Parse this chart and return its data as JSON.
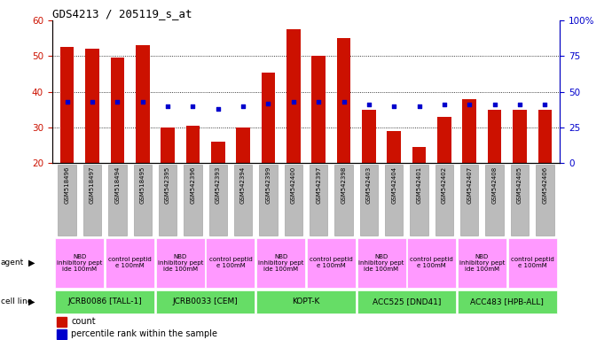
{
  "title": "GDS4213 / 205119_s_at",
  "samples": [
    "GSM518496",
    "GSM518497",
    "GSM518494",
    "GSM518495",
    "GSM542395",
    "GSM542396",
    "GSM542393",
    "GSM542394",
    "GSM542399",
    "GSM542400",
    "GSM542397",
    "GSM542398",
    "GSM542403",
    "GSM542404",
    "GSM542401",
    "GSM542402",
    "GSM542407",
    "GSM542408",
    "GSM542405",
    "GSM542406"
  ],
  "counts": [
    52.5,
    52.0,
    49.5,
    53.0,
    30.0,
    30.5,
    26.0,
    30.0,
    45.5,
    57.5,
    50.0,
    55.0,
    35.0,
    29.0,
    24.5,
    33.0,
    38.0,
    35.0,
    35.0,
    35.0
  ],
  "percentiles": [
    43,
    43,
    43,
    43,
    40,
    40,
    38,
    40,
    42,
    43,
    43,
    43,
    41,
    40,
    40,
    41,
    41,
    41,
    41,
    41
  ],
  "ylim_left": [
    20,
    60
  ],
  "ylim_right": [
    0,
    100
  ],
  "yticks_left": [
    20,
    30,
    40,
    50,
    60
  ],
  "yticks_right": [
    0,
    25,
    50,
    75,
    100
  ],
  "cell_lines": [
    {
      "label": "JCRB0086 [TALL-1]",
      "start": 0,
      "end": 4
    },
    {
      "label": "JCRB0033 [CEM]",
      "start": 4,
      "end": 8
    },
    {
      "label": "KOPT-K",
      "start": 8,
      "end": 12
    },
    {
      "label": "ACC525 [DND41]",
      "start": 12,
      "end": 16
    },
    {
      "label": "ACC483 [HPB-ALL]",
      "start": 16,
      "end": 20
    }
  ],
  "agents": [
    {
      "label": "NBD\ninhibitory pept\nide 100mM",
      "start": 0,
      "end": 2
    },
    {
      "label": "control peptid\ne 100mM",
      "start": 2,
      "end": 4
    },
    {
      "label": "NBD\ninhibitory pept\nide 100mM",
      "start": 4,
      "end": 6
    },
    {
      "label": "control peptid\ne 100mM",
      "start": 6,
      "end": 8
    },
    {
      "label": "NBD\ninhibitory pept\nide 100mM",
      "start": 8,
      "end": 10
    },
    {
      "label": "control peptid\ne 100mM",
      "start": 10,
      "end": 12
    },
    {
      "label": "NBD\ninhibitory pept\nide 100mM",
      "start": 12,
      "end": 14
    },
    {
      "label": "control peptid\ne 100mM",
      "start": 14,
      "end": 16
    },
    {
      "label": "NBD\ninhibitory pept\nide 100mM",
      "start": 16,
      "end": 18
    },
    {
      "label": "control peptid\ne 100mM",
      "start": 18,
      "end": 20
    }
  ],
  "bar_color": "#CC1100",
  "dot_color": "#0000CC",
  "cell_line_color": "#66DD66",
  "agent_nbd_color": "#FF99FF",
  "agent_ctrl_color": "#FF99FF",
  "tick_bg_color": "#BBBBBB",
  "legend_items": [
    {
      "label": "count",
      "color": "#CC1100",
      "marker": "square"
    },
    {
      "label": "percentile rank within the sample",
      "color": "#0000CC",
      "marker": "square"
    }
  ]
}
